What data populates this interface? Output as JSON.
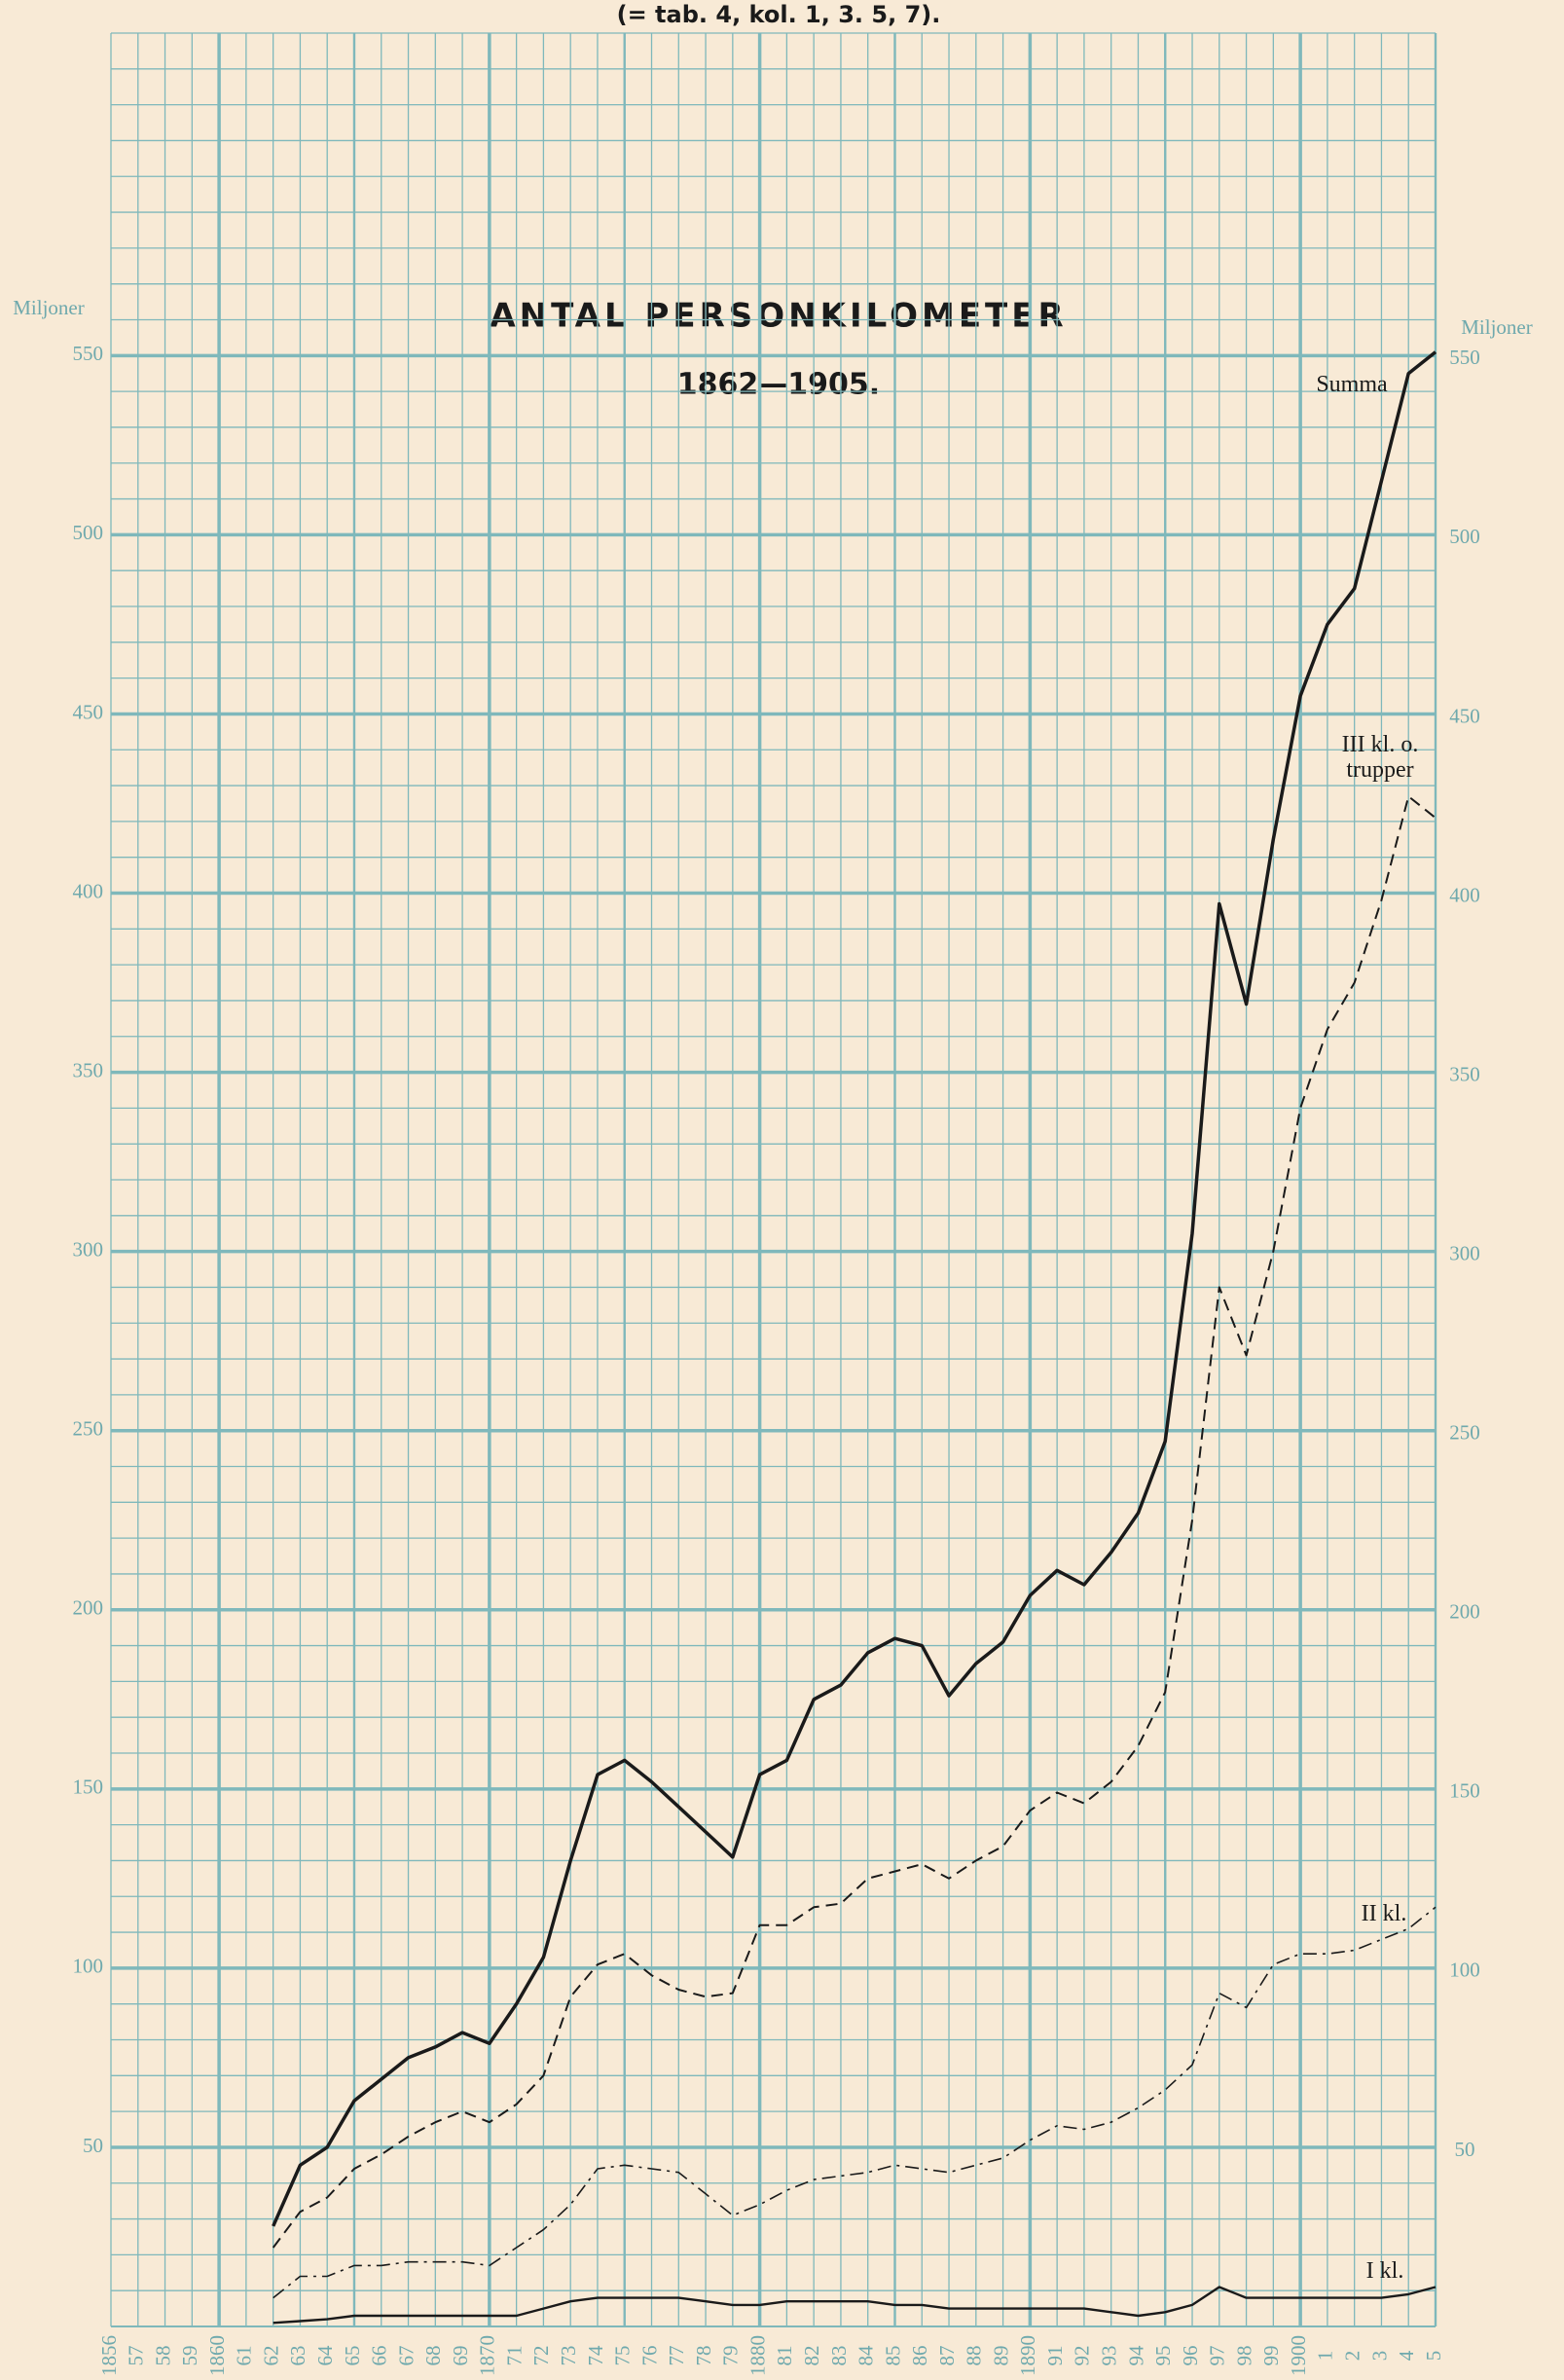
{
  "header": "(= tab. 4, kol. 1, 3. 5, 7).",
  "chart_data": {
    "type": "line",
    "title": "ANTAL PERSONKILOMETER",
    "subtitle": "1862—1905.",
    "y_label": "Miljoner",
    "grid": true,
    "grid_color": "#7fb8bb",
    "x": [
      1862,
      1863,
      1864,
      1865,
      1866,
      1867,
      1868,
      1869,
      1870,
      1871,
      1872,
      1873,
      1874,
      1875,
      1876,
      1877,
      1878,
      1879,
      1880,
      1881,
      1882,
      1883,
      1884,
      1885,
      1886,
      1887,
      1888,
      1889,
      1890,
      1891,
      1892,
      1893,
      1894,
      1895,
      1896,
      1897,
      1898,
      1899,
      1900,
      1901,
      1902,
      1903,
      1904,
      1905
    ],
    "series": [
      {
        "name": "Summa",
        "color": "#1a1a1a",
        "dash": "solid",
        "width": 3.5,
        "values": [
          28,
          45,
          50,
          63,
          69,
          75,
          78,
          82,
          79,
          90,
          103,
          130,
          154,
          158,
          152,
          145,
          138,
          131,
          154,
          158,
          175,
          179,
          188,
          192,
          190,
          176,
          185,
          191,
          204,
          211,
          207,
          216,
          227,
          247,
          305,
          397,
          369,
          415,
          455,
          475,
          485,
          515,
          545,
          551
        ]
      },
      {
        "name": "III kl. o. trupper",
        "color": "#1a1a1a",
        "dash": "dashed",
        "width": 2,
        "values": [
          22,
          32,
          36,
          44,
          48,
          53,
          57,
          60,
          57,
          62,
          70,
          92,
          101,
          104,
          98,
          94,
          92,
          93,
          112,
          112,
          117,
          118,
          125,
          127,
          129,
          125,
          130,
          134,
          144,
          149,
          146,
          152,
          162,
          177,
          225,
          290,
          271,
          300,
          340,
          362,
          375,
          398,
          427,
          421
        ]
      },
      {
        "name": "II kl.",
        "color": "#1a1a1a",
        "dash": "dashdot",
        "width": 1.6,
        "values": [
          8,
          14,
          14,
          17,
          17,
          18,
          18,
          18,
          17,
          22,
          27,
          34,
          44,
          45,
          44,
          43,
          37,
          31,
          34,
          38,
          41,
          42,
          43,
          45,
          44,
          43,
          45,
          47,
          52,
          56,
          55,
          57,
          61,
          66,
          73,
          93,
          89,
          101,
          104,
          104,
          105,
          108,
          111,
          117
        ]
      },
      {
        "name": "I kl.",
        "color": "#1a1a1a",
        "dash": "solid",
        "width": 2.4,
        "values": [
          1,
          1.5,
          2,
          3,
          3,
          3,
          3,
          3,
          3,
          3,
          5,
          7,
          8,
          8,
          8,
          8,
          7,
          6,
          6,
          7,
          7,
          7,
          7,
          6,
          6,
          5,
          5,
          5,
          5,
          5,
          5,
          4,
          3,
          4,
          6,
          11,
          8,
          8,
          8,
          8,
          8,
          8,
          9,
          11
        ]
      }
    ],
    "xlim": [
      1856,
      1905
    ],
    "ylim": [
      0,
      640
    ],
    "yticks": [
      50,
      100,
      150,
      200,
      250,
      300,
      350,
      400,
      450,
      500,
      550
    ],
    "xticks": [
      1856,
      {
        "value": 1857,
        "label": "57"
      },
      {
        "value": 1858,
        "label": "58"
      },
      {
        "value": 1859,
        "label": "59"
      },
      1860,
      {
        "value": 1861,
        "label": "61"
      },
      {
        "value": 1862,
        "label": "62"
      },
      {
        "value": 1863,
        "label": "63"
      },
      {
        "value": 1864,
        "label": "64"
      },
      {
        "value": 1865,
        "label": "65"
      },
      {
        "value": 1866,
        "label": "66"
      },
      {
        "value": 1867,
        "label": "67"
      },
      {
        "value": 1868,
        "label": "68"
      },
      {
        "value": 1869,
        "label": "69"
      },
      1870,
      {
        "value": 1871,
        "label": "71"
      },
      {
        "value": 1872,
        "label": "72"
      },
      {
        "value": 1873,
        "label": "73"
      },
      {
        "value": 1874,
        "label": "74"
      },
      {
        "value": 1875,
        "label": "75"
      },
      {
        "value": 1876,
        "label": "76"
      },
      {
        "value": 1877,
        "label": "77"
      },
      {
        "value": 1878,
        "label": "78"
      },
      {
        "value": 1879,
        "label": "79"
      },
      1880,
      {
        "value": 1881,
        "label": "81"
      },
      {
        "value": 1882,
        "label": "82"
      },
      {
        "value": 1883,
        "label": "83"
      },
      {
        "value": 1884,
        "label": "84"
      },
      {
        "value": 1885,
        "label": "85"
      },
      {
        "value": 1886,
        "label": "86"
      },
      {
        "value": 1887,
        "label": "87"
      },
      {
        "value": 1888,
        "label": "88"
      },
      {
        "value": 1889,
        "label": "89"
      },
      1890,
      {
        "value": 1891,
        "label": "91"
      },
      {
        "value": 1892,
        "label": "92"
      },
      {
        "value": 1893,
        "label": "93"
      },
      {
        "value": 1894,
        "label": "94"
      },
      {
        "value": 1895,
        "label": "95"
      },
      {
        "value": 1896,
        "label": "96"
      },
      {
        "value": 1897,
        "label": "97"
      },
      {
        "value": 1898,
        "label": "98"
      },
      {
        "value": 1899,
        "label": "99"
      },
      1900,
      {
        "value": 1901,
        "label": "1"
      },
      {
        "value": 1902,
        "label": "2"
      },
      {
        "value": 1903,
        "label": "3"
      },
      {
        "value": 1904,
        "label": "4"
      },
      {
        "value": 1905,
        "label": "5"
      }
    ]
  }
}
